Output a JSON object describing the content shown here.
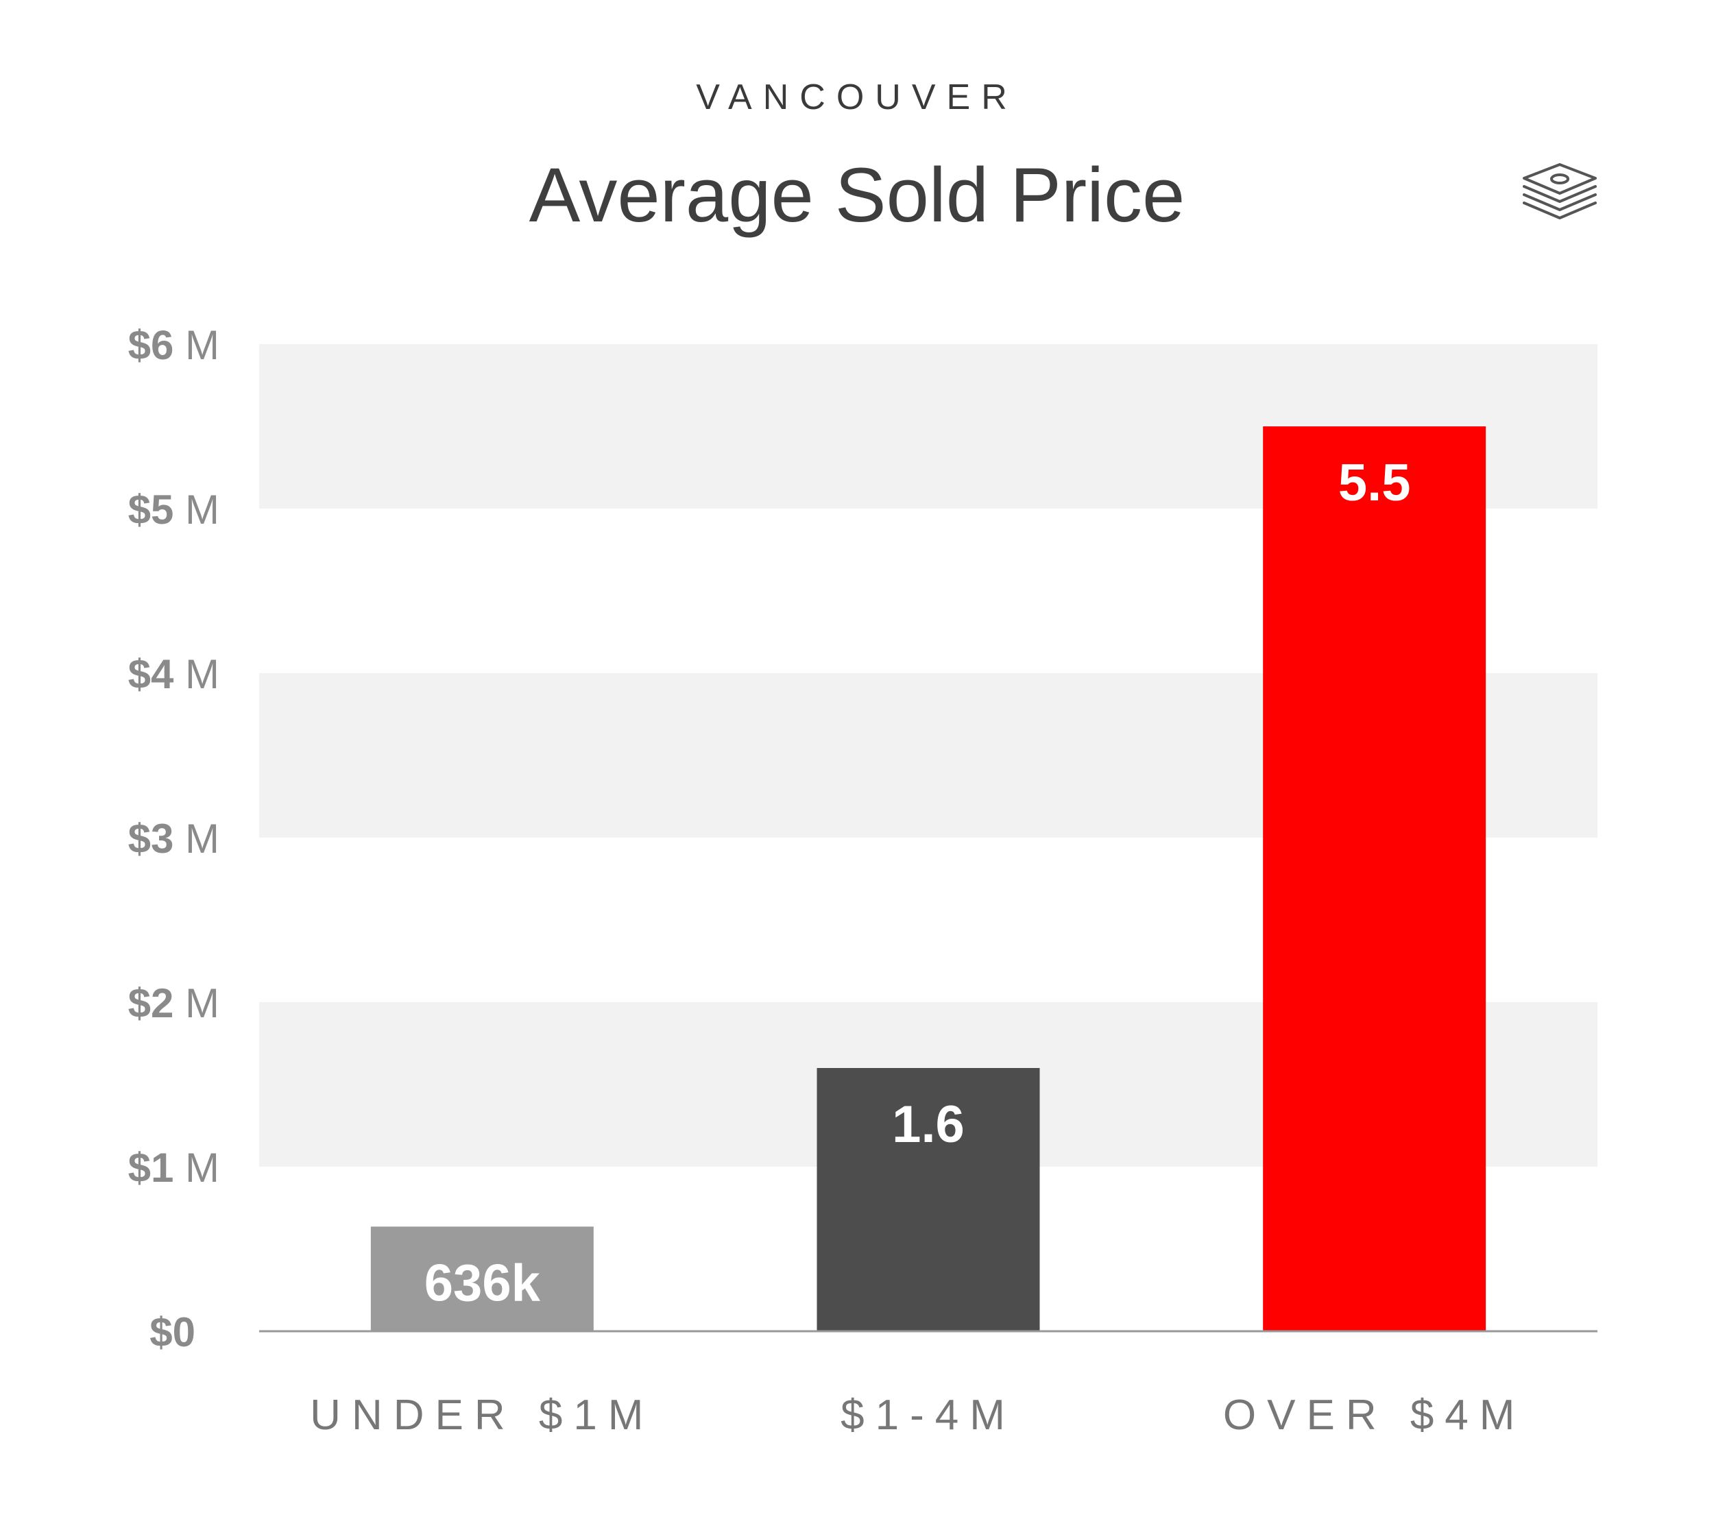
{
  "header": {
    "subtitle": "VANCOUVER",
    "title": "Average Sold Price",
    "icon": "money-stack-icon"
  },
  "chart_data": {
    "type": "bar",
    "categories": [
      "UNDER $1M",
      "$1-4M",
      "OVER $4M"
    ],
    "values": [
      0.636,
      1.6,
      5.5
    ],
    "value_labels": [
      "636k",
      "1.6",
      "5.5"
    ],
    "bar_colors": [
      "#9b9b9b",
      "#4d4d4d",
      "#ff0000"
    ],
    "yticks": [
      {
        "value": 0,
        "label": "$0",
        "unit": ""
      },
      {
        "value": 1,
        "label": "$1",
        "unit": "M"
      },
      {
        "value": 2,
        "label": "$2",
        "unit": "M"
      },
      {
        "value": 3,
        "label": "$3",
        "unit": "M"
      },
      {
        "value": 4,
        "label": "$4",
        "unit": "M"
      },
      {
        "value": 5,
        "label": "$5",
        "unit": "M"
      },
      {
        "value": 6,
        "label": "$6",
        "unit": "M"
      }
    ],
    "ylim": [
      0,
      6
    ],
    "band_color": "#f2f2f2",
    "axis_color": "#999999",
    "grid": "alternating-bands",
    "legend": "none"
  }
}
